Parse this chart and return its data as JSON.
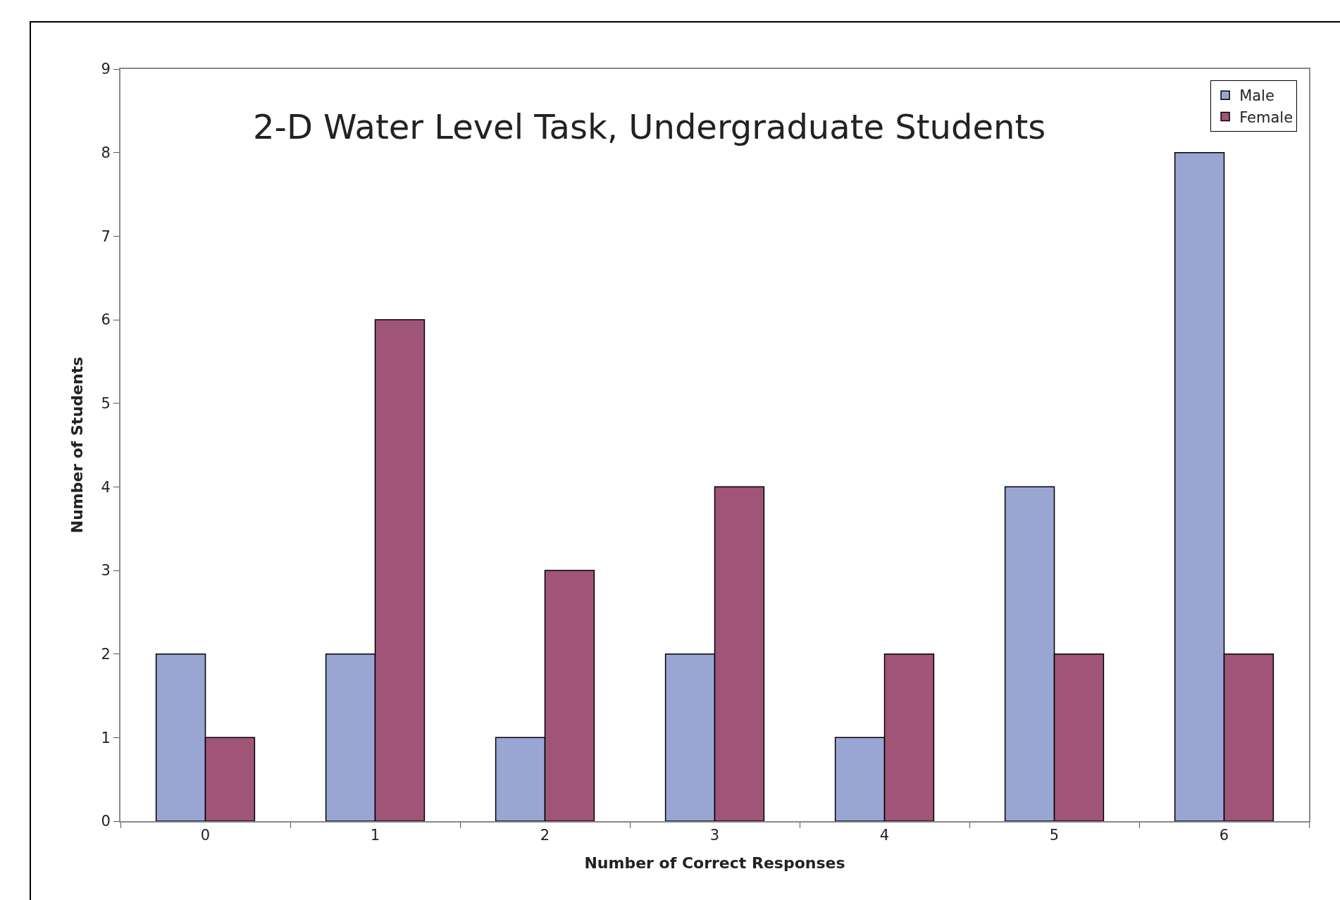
{
  "chart_data": {
    "type": "bar",
    "title": "2-D Water Level Task, Undergraduate Students",
    "xlabel": "Number of Correct Responses",
    "ylabel": "Number of Students",
    "categories": [
      "0",
      "1",
      "2",
      "3",
      "4",
      "5",
      "6"
    ],
    "series": [
      {
        "name": "Male",
        "color": "#99a6d4",
        "values": [
          2,
          2,
          1,
          2,
          1,
          4,
          8
        ]
      },
      {
        "name": "Female",
        "color": "#a05478",
        "values": [
          1,
          6,
          3,
          4,
          2,
          2,
          2
        ]
      }
    ],
    "ylim": [
      0,
      9
    ],
    "yticks": [
      0,
      1,
      2,
      3,
      4,
      5,
      6,
      7,
      8,
      9
    ],
    "grid": false,
    "legend": "top right"
  }
}
